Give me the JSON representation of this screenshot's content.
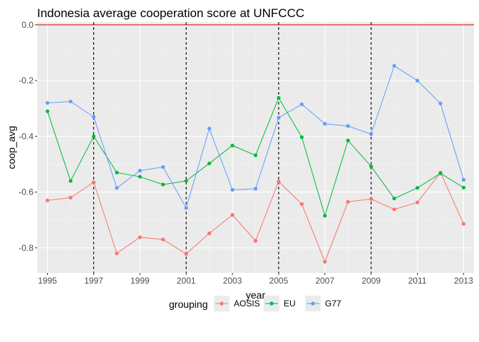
{
  "chart_data": {
    "type": "line",
    "title": "Indonesia average cooperation score at UNFCCC",
    "xlabel": "year",
    "ylabel": "coop_avg",
    "xlim": [
      1994.55,
      2013.45
    ],
    "ylim": [
      -0.89,
      0.01
    ],
    "x_ticks": [
      1995,
      1997,
      1999,
      2001,
      2003,
      2005,
      2007,
      2009,
      2011,
      2013
    ],
    "y_ticks": [
      0.0,
      -0.2,
      -0.4,
      -0.6,
      -0.8
    ],
    "y_tick_labels": [
      "0.0",
      "-0.2",
      "-0.4",
      "-0.6",
      "-0.8"
    ],
    "hline": {
      "y": 0.0,
      "color": "#CC0000"
    },
    "vlines": [
      1997,
      2001,
      2005,
      2009
    ],
    "grid": true,
    "legend_title": "grouping",
    "legend_position": "bottom",
    "x": [
      1995,
      1996,
      1997,
      1998,
      1999,
      2000,
      2001,
      2002,
      2003,
      2004,
      2005,
      2006,
      2007,
      2008,
      2009,
      2010,
      2011,
      2012,
      2013
    ],
    "series": [
      {
        "name": "AOSIS",
        "color": "#F8766D",
        "values": [
          -0.63,
          -0.62,
          -0.565,
          -0.82,
          -0.762,
          -0.77,
          -0.822,
          -0.748,
          -0.682,
          -0.775,
          -0.562,
          -0.643,
          -0.85,
          -0.635,
          -0.625,
          -0.662,
          -0.637,
          -0.53,
          -0.714
        ]
      },
      {
        "name": "EU",
        "color": "#00BA38",
        "values": [
          -0.31,
          -0.56,
          -0.4,
          -0.53,
          -0.545,
          -0.573,
          -0.56,
          -0.497,
          -0.433,
          -0.468,
          -0.262,
          -0.403,
          -0.685,
          -0.415,
          -0.508,
          -0.623,
          -0.585,
          -0.533,
          -0.584
        ]
      },
      {
        "name": "G77",
        "color": "#619CFF",
        "values": [
          -0.28,
          -0.275,
          -0.33,
          -0.585,
          -0.523,
          -0.51,
          -0.657,
          -0.372,
          -0.592,
          -0.588,
          -0.333,
          -0.285,
          -0.355,
          -0.363,
          -0.392,
          -0.147,
          -0.2,
          -0.282,
          -0.556
        ]
      }
    ]
  }
}
